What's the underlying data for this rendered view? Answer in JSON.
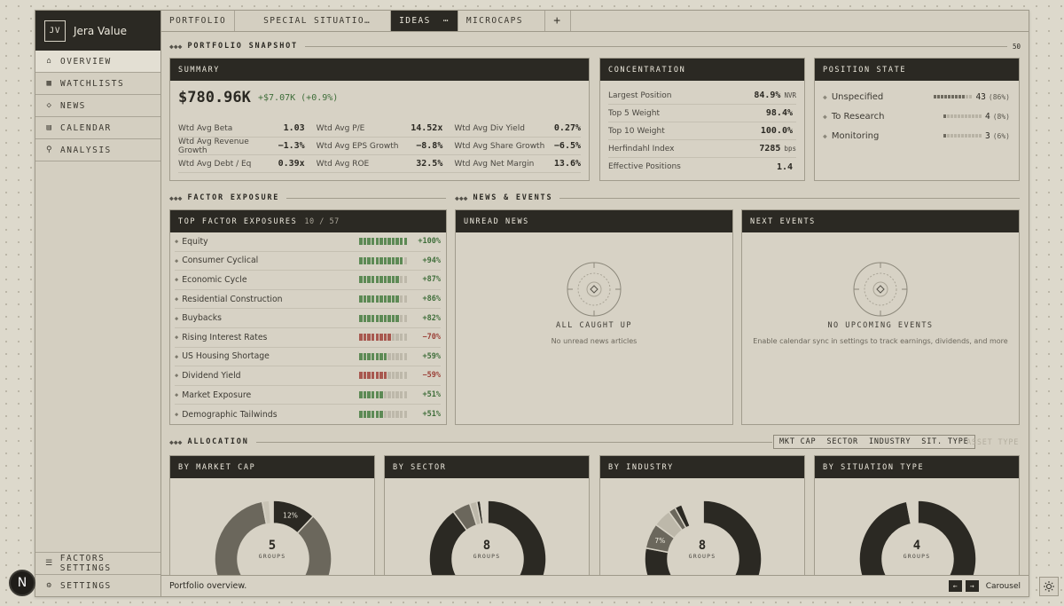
{
  "app": {
    "initials": "JV",
    "name": "Jera Value"
  },
  "nav": {
    "overview": "OVERVIEW",
    "watchlists": "WATCHLISTS",
    "news": "NEWS",
    "calendar": "CALENDAR",
    "analysis": "ANALYSIS",
    "factors_settings": "FACTORS SETTINGS",
    "settings": "SETTINGS"
  },
  "tabs": {
    "portfolio": "PORTFOLIO",
    "special": "SPECIAL SITUATIO…",
    "ideas": "IDEAS",
    "ideas_more": "⋯",
    "microcaps": "MICROCAPS",
    "add": "+"
  },
  "sections": {
    "snapshot": "PORTFOLIO SNAPSHOT",
    "snapshot_count": "50",
    "factor": "FACTOR EXPOSURE",
    "news": "NEWS & EVENTS",
    "allocation": "ALLOCATION"
  },
  "summary": {
    "title": "SUMMARY",
    "value": "$780.96K",
    "change": "+$7.07K (+0.9%)",
    "metrics": [
      [
        {
          "label": "Wtd Avg Beta",
          "value": "1.03"
        },
        {
          "label": "Wtd Avg P/E",
          "value": "14.52x"
        },
        {
          "label": "Wtd Avg Div Yield",
          "value": "0.27%"
        }
      ],
      [
        {
          "label": "Wtd Avg Revenue Growth",
          "value": "−1.3%"
        },
        {
          "label": "Wtd Avg EPS Growth",
          "value": "−8.8%"
        },
        {
          "label": "Wtd Avg Share Growth",
          "value": "−6.5%"
        }
      ],
      [
        {
          "label": "Wtd Avg Debt / Eq",
          "value": "0.39x"
        },
        {
          "label": "Wtd Avg ROE",
          "value": "32.5%"
        },
        {
          "label": "Wtd Avg Net Margin",
          "value": "13.6%"
        }
      ]
    ]
  },
  "concentration": {
    "title": "CONCENTRATION",
    "rows": [
      {
        "label": "Largest Position",
        "value": "84.9%",
        "unit": "NVR"
      },
      {
        "label": "Top 5 Weight",
        "value": "98.4%",
        "unit": ""
      },
      {
        "label": "Top 10 Weight",
        "value": "100.0%",
        "unit": ""
      },
      {
        "label": "Herfindahl Index",
        "value": "7285",
        "unit": "bps"
      },
      {
        "label": "Effective Positions",
        "value": "1.4",
        "unit": ""
      }
    ]
  },
  "position_state": {
    "title": "POSITION STATE",
    "rows": [
      {
        "label": "Unspecified",
        "count": "43",
        "pct": "(86%)",
        "fill": 0.86
      },
      {
        "label": "To Research",
        "count": "4",
        "pct": "(8%)",
        "fill": 0.08
      },
      {
        "label": "Monitoring",
        "count": "3",
        "pct": "(6%)",
        "fill": 0.06
      }
    ]
  },
  "factors": {
    "title": "TOP FACTOR EXPOSURES",
    "count": "10 / 57",
    "rows": [
      {
        "label": "Equity",
        "value": "+100%",
        "v": 1.0
      },
      {
        "label": "Consumer Cyclical",
        "value": "+94%",
        "v": 0.94
      },
      {
        "label": "Economic Cycle",
        "value": "+87%",
        "v": 0.87
      },
      {
        "label": "Residential Construction",
        "value": "+86%",
        "v": 0.86
      },
      {
        "label": "Buybacks",
        "value": "+82%",
        "v": 0.82
      },
      {
        "label": "Rising Interest Rates",
        "value": "−70%",
        "v": -0.7
      },
      {
        "label": "US Housing Shortage",
        "value": "+59%",
        "v": 0.59
      },
      {
        "label": "Dividend Yield",
        "value": "−59%",
        "v": -0.59
      },
      {
        "label": "Market Exposure",
        "value": "+51%",
        "v": 0.51
      },
      {
        "label": "Demographic Tailwinds",
        "value": "+51%",
        "v": 0.51
      }
    ]
  },
  "news": {
    "title": "UNREAD NEWS",
    "empty_title": "ALL CAUGHT UP",
    "empty_desc": "No unread news articles"
  },
  "events": {
    "title": "NEXT EVENTS",
    "empty_title": "NO UPCOMING EVENTS",
    "empty_desc": "Enable calendar sync in settings to track earnings, dividends, and more"
  },
  "allocation": {
    "filters": [
      "MKT CAP",
      "SECTOR",
      "INDUSTRY",
      "SIT. TYPE"
    ],
    "filter_disabled": "ASSET TYPE",
    "charts": [
      {
        "title": "BY MARKET CAP",
        "count": "5",
        "unit": "GROUPS",
        "label": "12%",
        "slices": [
          {
            "v": 0.12,
            "c": "#2b2923"
          },
          {
            "v": 0.33,
            "c": "#6b675c"
          },
          {
            "v": 0.52,
            "c": "#6b675c"
          },
          {
            "v": 0.02,
            "c": "#c9c4b6"
          },
          {
            "v": 0.01,
            "c": "#d7d2c5"
          }
        ]
      },
      {
        "title": "BY SECTOR",
        "count": "8",
        "unit": "GROUPS",
        "label": "",
        "slices": [
          {
            "v": 0.9,
            "c": "#2b2923"
          },
          {
            "v": 0.05,
            "c": "#6b675c"
          },
          {
            "v": 0.02,
            "c": "#bdb8aa"
          },
          {
            "v": 0.01,
            "c": "#2b2923"
          },
          {
            "v": 0.02,
            "c": "#d7d2c5"
          }
        ]
      },
      {
        "title": "BY INDUSTRY",
        "count": "8",
        "unit": "GROUPS",
        "label": "7%",
        "slices": [
          {
            "v": 0.78,
            "c": "#2b2923"
          },
          {
            "v": 0.07,
            "c": "#6b675c"
          },
          {
            "v": 0.05,
            "c": "#bdb8aa"
          },
          {
            "v": 0.02,
            "c": "#6b675c"
          },
          {
            "v": 0.02,
            "c": "#2b2923"
          },
          {
            "v": 0.06,
            "c": "#d7d2c5"
          }
        ]
      },
      {
        "title": "BY SITUATION TYPE",
        "count": "4",
        "unit": "GROUPS",
        "label": "",
        "slices": [
          {
            "v": 0.97,
            "c": "#2b2923"
          },
          {
            "v": 0.03,
            "c": "#d7d2c5"
          }
        ]
      }
    ]
  },
  "status": {
    "message": "Portfolio overview.",
    "prev": "←",
    "next": "→",
    "carousel": "Carousel"
  },
  "fab": {
    "label": "N"
  }
}
